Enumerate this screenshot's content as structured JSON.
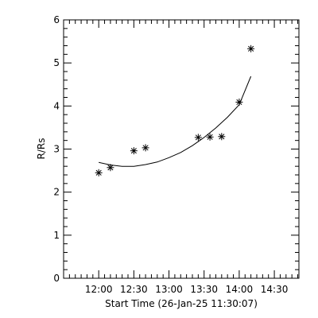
{
  "chart_data": {
    "type": "scatter",
    "title": "",
    "xlabel": "Start Time (26-Jan-25 11:30:07)",
    "ylabel": "R/Rs",
    "x_unit": "time",
    "xlim": [
      "11:30",
      "14:51"
    ],
    "ylim": [
      0,
      6
    ],
    "x_tick_labels": [
      "12:00",
      "12:30",
      "13:00",
      "13:30",
      "14:00",
      "14:30"
    ],
    "y_tick_labels": [
      "0",
      "1",
      "2",
      "3",
      "4",
      "5",
      "6"
    ],
    "grid": false,
    "legend": "none",
    "series": [
      {
        "kind": "markers",
        "marker": "asterisk",
        "points": [
          {
            "x": "12:00",
            "y": 2.45
          },
          {
            "x": "12:10",
            "y": 2.57
          },
          {
            "x": "12:30",
            "y": 2.96
          },
          {
            "x": "12:40",
            "y": 3.03
          },
          {
            "x": "13:25",
            "y": 3.27
          },
          {
            "x": "13:35",
            "y": 3.28
          },
          {
            "x": "13:45",
            "y": 3.29
          },
          {
            "x": "14:00",
            "y": 4.09
          },
          {
            "x": "14:10",
            "y": 5.33
          }
        ]
      },
      {
        "kind": "fit-line",
        "points": [
          {
            "x": "12:00",
            "y": 2.69
          },
          {
            "x": "12:10",
            "y": 2.63
          },
          {
            "x": "12:20",
            "y": 2.6
          },
          {
            "x": "12:30",
            "y": 2.6
          },
          {
            "x": "12:40",
            "y": 2.64
          },
          {
            "x": "12:50",
            "y": 2.7
          },
          {
            "x": "13:00",
            "y": 2.8
          },
          {
            "x": "13:10",
            "y": 2.92
          },
          {
            "x": "13:20",
            "y": 3.08
          },
          {
            "x": "13:30",
            "y": 3.27
          },
          {
            "x": "13:40",
            "y": 3.49
          },
          {
            "x": "13:50",
            "y": 3.74
          },
          {
            "x": "14:00",
            "y": 4.03
          },
          {
            "x": "14:10",
            "y": 4.69
          }
        ]
      }
    ],
    "colors": {
      "foreground": "#000000",
      "background": "#ffffff"
    }
  }
}
